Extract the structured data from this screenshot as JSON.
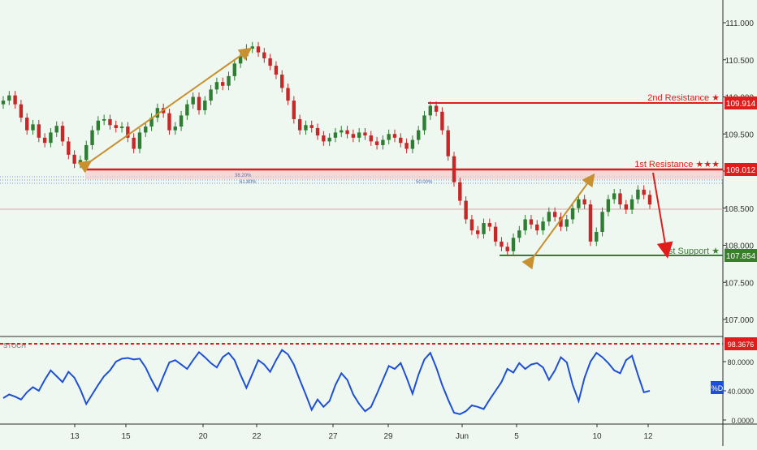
{
  "chart_data": {
    "type": "candlestick",
    "symbol_context": "price chart with stochastic oscillator",
    "price_axis": {
      "ticks": [
        "111.000",
        "110.500",
        "110.000",
        "109.500",
        "109.000",
        "108.500",
        "108.000",
        "107.500",
        "107.000"
      ],
      "ylim": [
        106.5,
        111.3
      ]
    },
    "x_axis": {
      "ticks": [
        "13",
        "15",
        "20",
        "22",
        "27",
        "29",
        "Jun",
        "5",
        "10",
        "12"
      ]
    },
    "levels": [
      {
        "label": "2nd Resistance ★",
        "value": 109.914,
        "value_label": "109.914",
        "color": "#e01c1c"
      },
      {
        "label": "1st Resistance ★★★",
        "value": 109.012,
        "value_label": "109.012",
        "color": "#e01c1c"
      },
      {
        "label": "1st Support ★",
        "value": 107.854,
        "value_label": "107.854",
        "color": "#3a7d2c"
      }
    ],
    "fib_labels": [
      "38.20%",
      "61.80%",
      "50.00%"
    ],
    "price_series": [
      109.95,
      110.02,
      109.9,
      109.72,
      109.55,
      109.63,
      109.45,
      109.38,
      109.52,
      109.61,
      109.4,
      109.22,
      109.1,
      109.15,
      109.35,
      109.55,
      109.68,
      109.7,
      109.62,
      109.58,
      109.6,
      109.45,
      109.3,
      109.52,
      109.6,
      109.72,
      109.85,
      109.78,
      109.55,
      109.6,
      109.75,
      109.9,
      110.0,
      109.82,
      109.95,
      110.1,
      110.2,
      110.15,
      110.28,
      110.45,
      110.55,
      110.65,
      110.68,
      110.6,
      110.52,
      110.42,
      110.3,
      110.12,
      109.95,
      109.7,
      109.55,
      109.62,
      109.58,
      109.48,
      109.4,
      109.45,
      109.52,
      109.55,
      109.5,
      109.45,
      109.52,
      109.48,
      109.4,
      109.35,
      109.42,
      109.5,
      109.45,
      109.38,
      109.3,
      109.42,
      109.55,
      109.75,
      109.88,
      109.8,
      109.55,
      109.2,
      108.85,
      108.6,
      108.35,
      108.2,
      108.15,
      108.3,
      108.25,
      108.05,
      107.98,
      107.92,
      108.1,
      108.2,
      108.35,
      108.28,
      108.2,
      108.32,
      108.45,
      108.38,
      108.25,
      108.35,
      108.5,
      108.62,
      108.55,
      108.05,
      108.18,
      108.45,
      108.62,
      108.7,
      108.55,
      108.48,
      108.62,
      108.75,
      108.68,
      108.55
    ],
    "stochastic": {
      "label": "STOCH",
      "series_label": "%D",
      "ylim": [
        0,
        100
      ],
      "ticks": [
        "80.0000",
        "40.0000",
        "0.0000"
      ],
      "level_label": "98.3676",
      "values": [
        30,
        35,
        32,
        28,
        38,
        45,
        40,
        55,
        68,
        60,
        52,
        66,
        58,
        42,
        22,
        35,
        48,
        60,
        68,
        80,
        84,
        85,
        83,
        84,
        72,
        55,
        40,
        60,
        79,
        82,
        76,
        70,
        82,
        93,
        86,
        78,
        72,
        86,
        92,
        82,
        62,
        44,
        63,
        82,
        76,
        66,
        82,
        96,
        90,
        76,
        55,
        35,
        14,
        28,
        18,
        26,
        48,
        64,
        55,
        35,
        22,
        12,
        18,
        36,
        55,
        74,
        70,
        78,
        58,
        36,
        62,
        83,
        92,
        72,
        48,
        28,
        10,
        8,
        12,
        20,
        18,
        15,
        28,
        40,
        52,
        70,
        65,
        78,
        70,
        76,
        78,
        72,
        55,
        68,
        86,
        79,
        48,
        26,
        58,
        80,
        92,
        86,
        78,
        68,
        64,
        82,
        88,
        62,
        38,
        40
      ]
    }
  }
}
